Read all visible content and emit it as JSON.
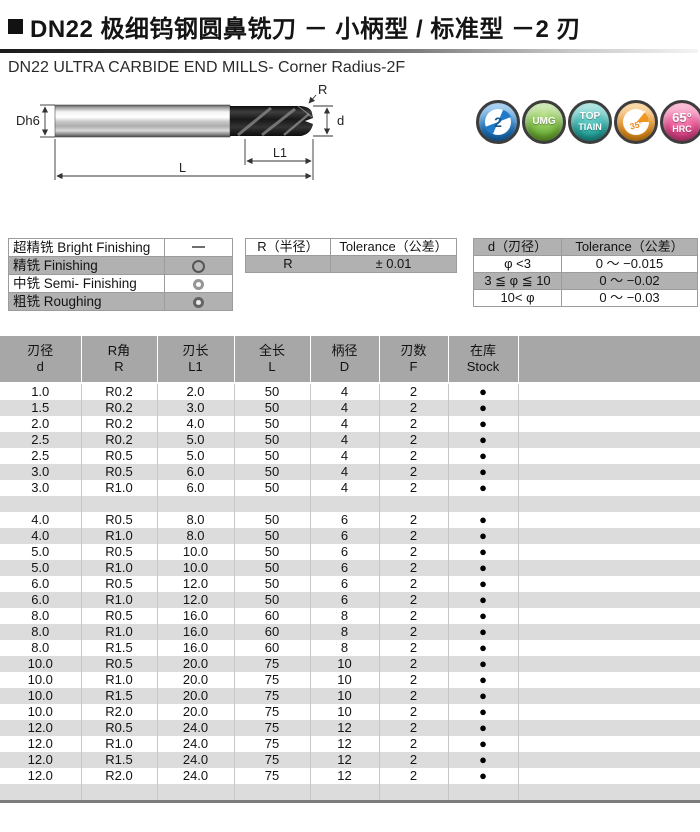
{
  "header": {
    "title": "DN22 极细钨钢圆鼻铣刀 － 小柄型 / 标准型 －2 刃",
    "subtitle": "DN22 ULTRA CARBIDE END MILLS- Corner Radius-2F"
  },
  "diagram": {
    "shank_diameter_label": "Dh6",
    "corner_radius_label": "R",
    "cutting_diameter_label": "d",
    "flute_length_label": "L1",
    "overall_length_label": "L"
  },
  "badges": {
    "flutes": {
      "value": "2",
      "color": "#1f7ac8"
    },
    "umg": {
      "text": "UMG",
      "color": "#74b73c"
    },
    "coating": {
      "line1": "TOP",
      "line2": "TIAIN",
      "color": "#2aada6"
    },
    "helix": {
      "angle": "35°",
      "color": "#ef9720"
    },
    "hardness": {
      "line1": "65°",
      "line2": "HRC",
      "color": "#e9498e"
    }
  },
  "finishing_table": {
    "rows": [
      {
        "label": "超精铣 Bright Finishing",
        "symbol": "dash"
      },
      {
        "label": "精铣 Finishing",
        "symbol": "circle"
      },
      {
        "label": "中铣 Semi- Finishing",
        "symbol": "ring-light"
      },
      {
        "label": "粗铣 Roughing",
        "symbol": "ring-dark"
      }
    ]
  },
  "r_tolerance_table": {
    "headers": [
      "R（半径）",
      "Tolerance（公差）"
    ],
    "rows": [
      [
        "R",
        "± 0.01"
      ]
    ]
  },
  "d_tolerance_table": {
    "headers": [
      "d（刃径）",
      "Tolerance（公差）"
    ],
    "rows": [
      [
        "φ <3",
        "0 ～ −0.015"
      ],
      [
        "3 ≦ φ ≦ 10",
        "0 ～ −0.02"
      ],
      [
        "10< φ",
        "0 ～ −0.03"
      ]
    ]
  },
  "main_table": {
    "headers": [
      {
        "zh": "刃径",
        "en": "d"
      },
      {
        "zh": "R角",
        "en": "R"
      },
      {
        "zh": "刃长",
        "en": "L1"
      },
      {
        "zh": "全长",
        "en": "L"
      },
      {
        "zh": "柄径",
        "en": "D"
      },
      {
        "zh": "刃数",
        "en": "F"
      },
      {
        "zh": "在库",
        "en": "Stock"
      }
    ],
    "stock_symbol": "●",
    "rows": [
      [
        "1.0",
        "R0.2",
        "2.0",
        "50",
        "4",
        "2",
        "●"
      ],
      [
        "1.5",
        "R0.2",
        "3.0",
        "50",
        "4",
        "2",
        "●"
      ],
      [
        "2.0",
        "R0.2",
        "4.0",
        "50",
        "4",
        "2",
        "●"
      ],
      [
        "2.5",
        "R0.2",
        "5.0",
        "50",
        "4",
        "2",
        "●"
      ],
      [
        "2.5",
        "R0.5",
        "5.0",
        "50",
        "4",
        "2",
        "●"
      ],
      [
        "3.0",
        "R0.5",
        "6.0",
        "50",
        "4",
        "2",
        "●"
      ],
      [
        "3.0",
        "R1.0",
        "6.0",
        "50",
        "4",
        "2",
        "●"
      ],
      null,
      [
        "4.0",
        "R0.5",
        "8.0",
        "50",
        "6",
        "2",
        "●"
      ],
      [
        "4.0",
        "R1.0",
        "8.0",
        "50",
        "6",
        "2",
        "●"
      ],
      [
        "5.0",
        "R0.5",
        "10.0",
        "50",
        "6",
        "2",
        "●"
      ],
      [
        "5.0",
        "R1.0",
        "10.0",
        "50",
        "6",
        "2",
        "●"
      ],
      [
        "6.0",
        "R0.5",
        "12.0",
        "50",
        "6",
        "2",
        "●"
      ],
      [
        "6.0",
        "R1.0",
        "12.0",
        "50",
        "6",
        "2",
        "●"
      ],
      [
        "8.0",
        "R0.5",
        "16.0",
        "60",
        "8",
        "2",
        "●"
      ],
      [
        "8.0",
        "R1.0",
        "16.0",
        "60",
        "8",
        "2",
        "●"
      ],
      [
        "8.0",
        "R1.5",
        "16.0",
        "60",
        "8",
        "2",
        "●"
      ],
      [
        "10.0",
        "R0.5",
        "20.0",
        "75",
        "10",
        "2",
        "●"
      ],
      [
        "10.0",
        "R1.0",
        "20.0",
        "75",
        "10",
        "2",
        "●"
      ],
      [
        "10.0",
        "R1.5",
        "20.0",
        "75",
        "10",
        "2",
        "●"
      ],
      [
        "10.0",
        "R2.0",
        "20.0",
        "75",
        "10",
        "2",
        "●"
      ],
      [
        "12.0",
        "R0.5",
        "24.0",
        "75",
        "12",
        "2",
        "●"
      ],
      [
        "12.0",
        "R1.0",
        "24.0",
        "75",
        "12",
        "2",
        "●"
      ],
      [
        "12.0",
        "R1.5",
        "24.0",
        "75",
        "12",
        "2",
        "●"
      ],
      [
        "12.0",
        "R2.0",
        "24.0",
        "75",
        "12",
        "2",
        "●"
      ],
      null
    ]
  }
}
